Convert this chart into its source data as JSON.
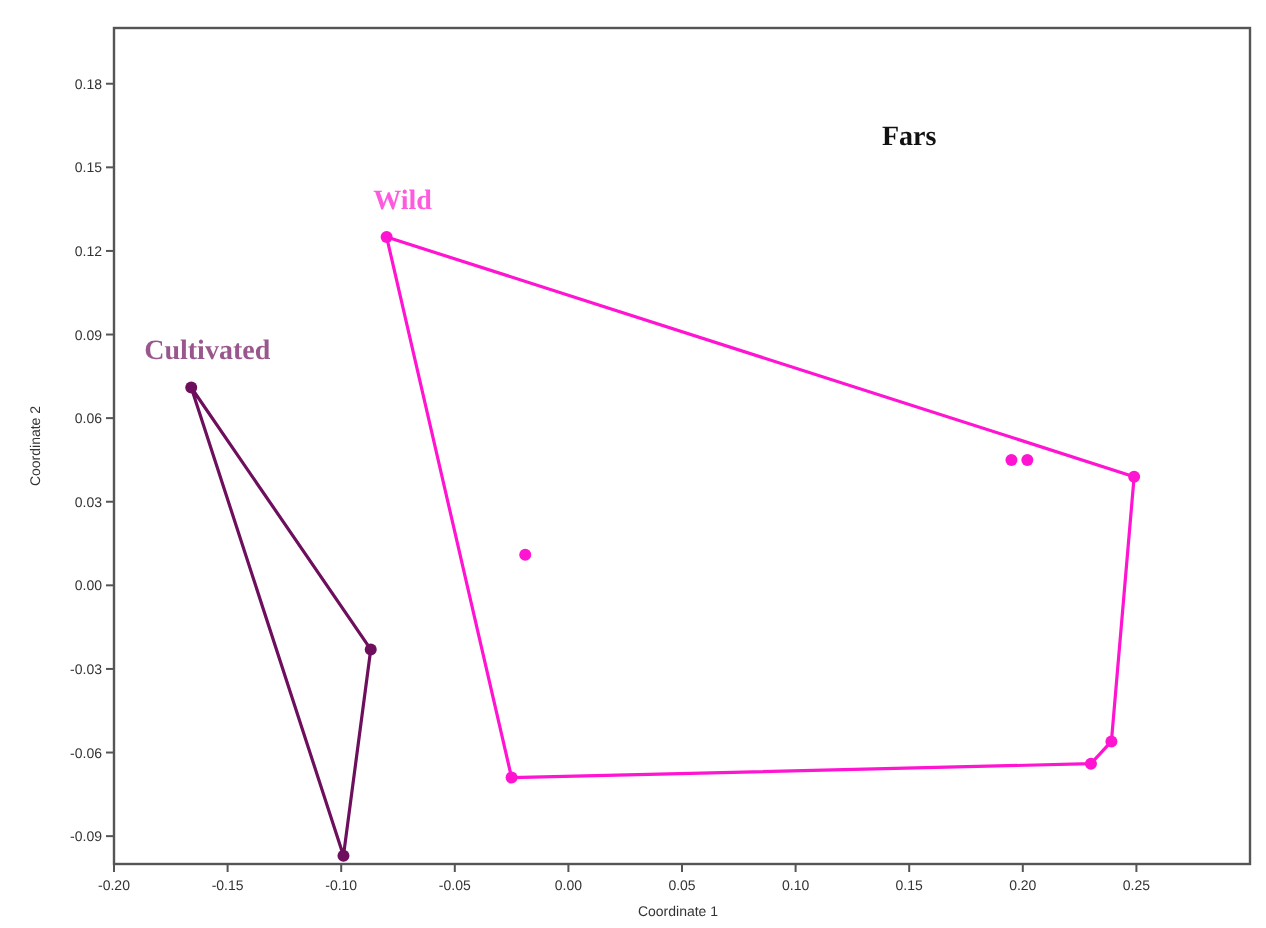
{
  "chart_data": {
    "type": "scatter",
    "title": "Fars",
    "xlabel": "Coordinate 1",
    "ylabel": "Coordinate 2",
    "xlim": [
      -0.2,
      0.3
    ],
    "xticks": [
      {
        "value": -0.2,
        "label": "-0.20"
      },
      {
        "value": -0.15,
        "label": "-0.15"
      },
      {
        "value": -0.1,
        "label": "-0.10"
      },
      {
        "value": -0.05,
        "label": "-0.05"
      },
      {
        "value": 0,
        "label": "0.00"
      },
      {
        "value": 0.05,
        "label": "0.05"
      },
      {
        "value": 0.1,
        "label": "0.10"
      },
      {
        "value": 0.15,
        "label": "0.15"
      },
      {
        "value": 0.2,
        "label": "0.20"
      },
      {
        "value": 0.25,
        "label": "0.25"
      }
    ],
    "ylim": [
      -0.1,
      0.2
    ],
    "yticks": [
      {
        "value": -0.09,
        "label": "-0.09"
      },
      {
        "value": -0.06,
        "label": "-0.06"
      },
      {
        "value": -0.03,
        "label": "-0.03"
      },
      {
        "value": 0,
        "label": "0.00"
      },
      {
        "value": 0.03,
        "label": "0.03"
      },
      {
        "value": 0.06,
        "label": "0.06"
      },
      {
        "value": 0.09,
        "label": "0.09"
      },
      {
        "value": 0.12,
        "label": "0.12"
      },
      {
        "value": 0.15,
        "label": "0.15"
      },
      {
        "value": 0.18,
        "label": "0.18"
      }
    ],
    "marker": "circle",
    "grid": false,
    "series": [
      {
        "name": "Cultivated",
        "color": "#6d0f5c",
        "x": [
          -0.166,
          -0.087,
          -0.099
        ],
        "values": [
          0.071,
          -0.023,
          -0.097
        ]
      },
      {
        "name": "Wild",
        "color": "#ff14d2",
        "x": [
          -0.08,
          0.249,
          0.239,
          0.23,
          -0.025,
          -0.019,
          0.195,
          0.202
        ],
        "values": [
          0.125,
          0.039,
          -0.056,
          -0.064,
          -0.069,
          0.011,
          0.045,
          0.045
        ]
      }
    ]
  }
}
